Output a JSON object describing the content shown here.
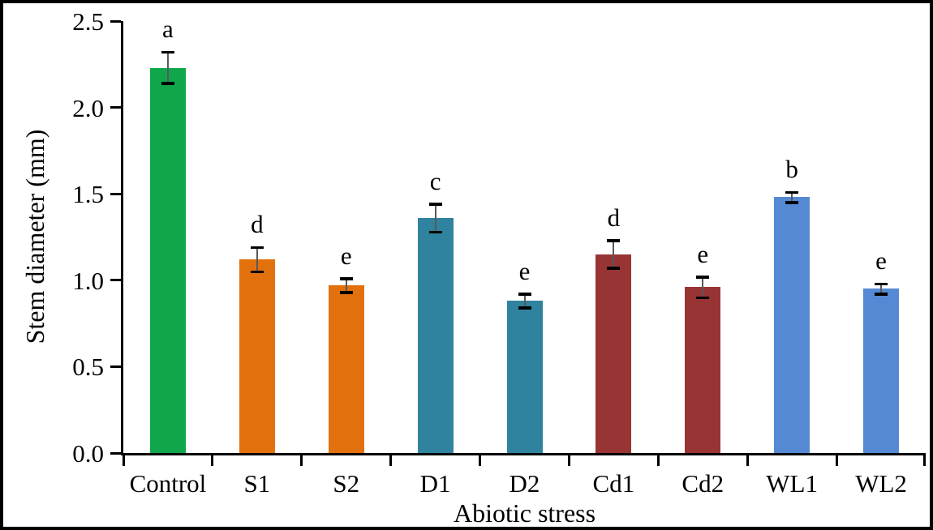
{
  "figure": {
    "background_color": "#ffffff",
    "frame_color": "#000000",
    "text_color": "#000000",
    "error_bar_line_color": "#595959",
    "error_bar_cap_color": "#000000"
  },
  "chart_data": {
    "type": "bar",
    "title": "",
    "xlabel": "Abiotic stress",
    "ylabel": "Stem diameter (mm)",
    "categories": [
      "Control",
      "S1",
      "S2",
      "D1",
      "D2",
      "Cd1",
      "Cd2",
      "WL1",
      "WL2"
    ],
    "values": [
      2.23,
      1.12,
      0.97,
      1.36,
      0.88,
      1.15,
      0.96,
      1.48,
      0.95
    ],
    "errors": [
      0.09,
      0.07,
      0.04,
      0.08,
      0.04,
      0.08,
      0.06,
      0.03,
      0.03
    ],
    "sig_letters": [
      "a",
      "d",
      "e",
      "c",
      "e",
      "d",
      "e",
      "b",
      "e"
    ],
    "bar_colors": [
      "#0FA64C",
      "#E2710D",
      "#E2710D",
      "#30839E",
      "#30839E",
      "#993434",
      "#993434",
      "#5589D3",
      "#5589D3"
    ],
    "ylim": [
      0.0,
      2.5
    ],
    "ytick_labels": [
      "0.0",
      "0.5",
      "1.0",
      "1.5",
      "2.0",
      "2.5"
    ],
    "grid": false,
    "legend": "none",
    "error_bars": true
  }
}
